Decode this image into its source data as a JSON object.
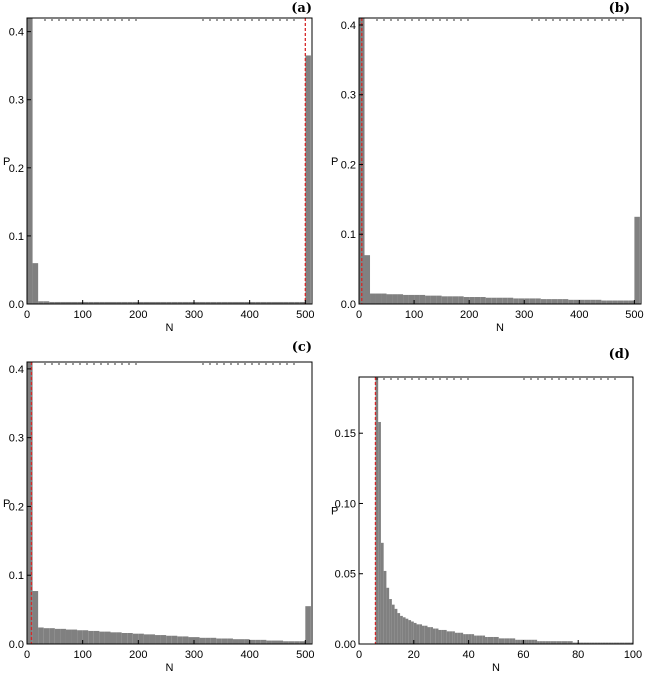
{
  "chart_data": [
    {
      "panel": "(a)",
      "type": "bar",
      "title": "(a)",
      "xlabel": "N",
      "ylabel": "P",
      "xlim": [
        0,
        512
      ],
      "ylim": [
        0,
        0.42
      ],
      "xticks": [
        0,
        100,
        200,
        300,
        400,
        500
      ],
      "yticks": [
        0.0,
        0.1,
        0.2,
        0.3,
        0.4
      ],
      "xtick_labels": [
        "0",
        "100",
        "200",
        "300",
        "400",
        "500"
      ],
      "ytick_labels": [
        "0.0",
        "0.1",
        "0.2",
        "0.3",
        "0.4"
      ],
      "bin_width": 10,
      "bins_x": [
        0,
        10,
        20,
        30,
        40,
        50,
        60,
        70,
        80,
        90,
        100,
        110,
        120,
        130,
        140,
        150,
        160,
        170,
        180,
        190,
        200,
        210,
        220,
        230,
        240,
        250,
        260,
        270,
        280,
        290,
        300,
        310,
        320,
        330,
        340,
        350,
        360,
        370,
        380,
        390,
        400,
        410,
        420,
        430,
        440,
        450,
        460,
        470,
        480,
        490,
        500
      ],
      "values": [
        0.42,
        0.06,
        0.004,
        0.004,
        0.003,
        0.003,
        0.003,
        0.003,
        0.003,
        0.003,
        0.003,
        0.003,
        0.003,
        0.003,
        0.003,
        0.003,
        0.003,
        0.003,
        0.003,
        0.003,
        0.003,
        0.003,
        0.003,
        0.003,
        0.003,
        0.003,
        0.003,
        0.003,
        0.003,
        0.003,
        0.003,
        0.003,
        0.003,
        0.003,
        0.003,
        0.003,
        0.003,
        0.003,
        0.003,
        0.003,
        0.003,
        0.003,
        0.003,
        0.003,
        0.003,
        0.003,
        0.003,
        0.003,
        0.003,
        0.003,
        0.365
      ],
      "marker_x": 500,
      "marker_color": "#d62728",
      "bar_color": "#808080"
    },
    {
      "panel": "(b)",
      "type": "bar",
      "title": "(b)",
      "xlabel": "N",
      "ylabel": "P",
      "xlim": [
        0,
        512
      ],
      "ylim": [
        0,
        0.41
      ],
      "xticks": [
        0,
        100,
        200,
        300,
        400,
        500
      ],
      "yticks": [
        0.0,
        0.1,
        0.2,
        0.3,
        0.4
      ],
      "xtick_labels": [
        "0",
        "100",
        "200",
        "300",
        "400",
        "500"
      ],
      "ytick_labels": [
        "0.0",
        "0.1",
        "0.2",
        "0.3",
        "0.4"
      ],
      "bin_width": 10,
      "bins_x": [
        0,
        10,
        20,
        30,
        40,
        50,
        60,
        70,
        80,
        90,
        100,
        110,
        120,
        130,
        140,
        150,
        160,
        170,
        180,
        190,
        200,
        210,
        220,
        230,
        240,
        250,
        260,
        270,
        280,
        290,
        300,
        310,
        320,
        330,
        340,
        350,
        360,
        370,
        380,
        390,
        400,
        410,
        420,
        430,
        440,
        450,
        460,
        470,
        480,
        490,
        500
      ],
      "values": [
        0.41,
        0.07,
        0.015,
        0.015,
        0.015,
        0.014,
        0.014,
        0.014,
        0.013,
        0.013,
        0.013,
        0.013,
        0.012,
        0.012,
        0.012,
        0.011,
        0.011,
        0.011,
        0.011,
        0.01,
        0.01,
        0.01,
        0.01,
        0.009,
        0.009,
        0.009,
        0.009,
        0.009,
        0.008,
        0.008,
        0.008,
        0.008,
        0.008,
        0.007,
        0.007,
        0.007,
        0.007,
        0.007,
        0.006,
        0.006,
        0.006,
        0.006,
        0.006,
        0.006,
        0.005,
        0.005,
        0.005,
        0.005,
        0.005,
        0.005,
        0.125
      ],
      "marker_x": 5,
      "marker_color": "#d62728",
      "bar_color": "#808080"
    },
    {
      "panel": "(c)",
      "type": "bar",
      "title": "(c)",
      "xlabel": "N",
      "ylabel": "P",
      "xlim": [
        0,
        512
      ],
      "ylim": [
        0,
        0.41
      ],
      "xticks": [
        0,
        100,
        200,
        300,
        400,
        500
      ],
      "yticks": [
        0.0,
        0.1,
        0.2,
        0.3,
        0.4
      ],
      "xtick_labels": [
        "0",
        "100",
        "200",
        "300",
        "400",
        "500"
      ],
      "ytick_labels": [
        "0.0",
        "0.1",
        "0.2",
        "0.3",
        "0.4"
      ],
      "bin_width": 10,
      "bins_x": [
        0,
        10,
        20,
        30,
        40,
        50,
        60,
        70,
        80,
        90,
        100,
        110,
        120,
        130,
        140,
        150,
        160,
        170,
        180,
        190,
        200,
        210,
        220,
        230,
        240,
        250,
        260,
        270,
        280,
        290,
        300,
        310,
        320,
        330,
        340,
        350,
        360,
        370,
        380,
        390,
        400,
        410,
        420,
        430,
        440,
        450,
        460,
        470,
        480,
        490,
        500
      ],
      "values": [
        0.41,
        0.077,
        0.024,
        0.023,
        0.023,
        0.022,
        0.022,
        0.021,
        0.021,
        0.02,
        0.02,
        0.019,
        0.019,
        0.018,
        0.018,
        0.017,
        0.017,
        0.016,
        0.016,
        0.015,
        0.015,
        0.014,
        0.014,
        0.013,
        0.013,
        0.012,
        0.012,
        0.011,
        0.011,
        0.01,
        0.01,
        0.009,
        0.009,
        0.009,
        0.008,
        0.008,
        0.008,
        0.007,
        0.007,
        0.007,
        0.006,
        0.006,
        0.006,
        0.005,
        0.005,
        0.005,
        0.004,
        0.004,
        0.004,
        0.004,
        0.055
      ],
      "marker_x": 8,
      "marker_color": "#d62728",
      "bar_color": "#808080"
    },
    {
      "panel": "(d)",
      "type": "bar",
      "title": "(d)",
      "xlabel": "N",
      "ylabel": "P",
      "xlim": [
        0,
        100
      ],
      "ylim": [
        0,
        0.19
      ],
      "xticks": [
        0,
        20,
        40,
        60,
        80,
        100
      ],
      "yticks": [
        0.0,
        0.05,
        0.1,
        0.15
      ],
      "xtick_labels": [
        "0",
        "20",
        "40",
        "60",
        "80",
        "100"
      ],
      "ytick_labels": [
        "0.00",
        "0.05",
        "0.10",
        "0.15"
      ],
      "bin_width": 1,
      "bins_x": [
        6,
        7,
        8,
        9,
        10,
        11,
        12,
        13,
        14,
        15,
        16,
        17,
        18,
        19,
        20,
        21,
        22,
        23,
        24,
        25,
        26,
        27,
        28,
        29,
        30,
        31,
        32,
        33,
        34,
        35,
        36,
        37,
        38,
        39,
        40,
        41,
        42,
        43,
        44,
        45,
        46,
        47,
        48,
        49,
        50,
        51,
        52,
        53,
        54,
        55,
        56,
        57,
        58,
        59,
        60,
        61,
        62,
        63,
        64,
        65,
        66,
        67,
        68,
        69,
        70,
        71,
        72,
        73,
        74,
        75,
        76,
        77,
        78,
        79,
        80,
        81,
        82,
        83,
        84,
        85,
        86,
        87,
        88,
        89,
        90,
        91,
        92,
        93,
        94,
        95,
        96,
        97,
        98,
        99
      ],
      "values": [
        0.19,
        0.158,
        0.072,
        0.052,
        0.04,
        0.032,
        0.028,
        0.025,
        0.022,
        0.02,
        0.019,
        0.018,
        0.017,
        0.016,
        0.015,
        0.014,
        0.014,
        0.013,
        0.013,
        0.012,
        0.012,
        0.011,
        0.011,
        0.01,
        0.01,
        0.01,
        0.009,
        0.009,
        0.009,
        0.008,
        0.008,
        0.008,
        0.007,
        0.007,
        0.007,
        0.007,
        0.006,
        0.006,
        0.006,
        0.006,
        0.005,
        0.005,
        0.005,
        0.005,
        0.005,
        0.004,
        0.004,
        0.004,
        0.004,
        0.004,
        0.004,
        0.003,
        0.003,
        0.003,
        0.003,
        0.003,
        0.003,
        0.003,
        0.003,
        0.002,
        0.002,
        0.002,
        0.002,
        0.002,
        0.002,
        0.002,
        0.002,
        0.002,
        0.002,
        0.002,
        0.002,
        0.002,
        0.001,
        0.001,
        0.001,
        0.001,
        0.001,
        0.001,
        0.001,
        0.001,
        0.001,
        0.001,
        0.001,
        0.001,
        0.001,
        0.001,
        0.001,
        0.001,
        0.001,
        0.001,
        0.001,
        0.001,
        0.001,
        0.001
      ],
      "marker_x": 6,
      "marker_color": "#d62728",
      "bar_color": "#808080"
    }
  ]
}
